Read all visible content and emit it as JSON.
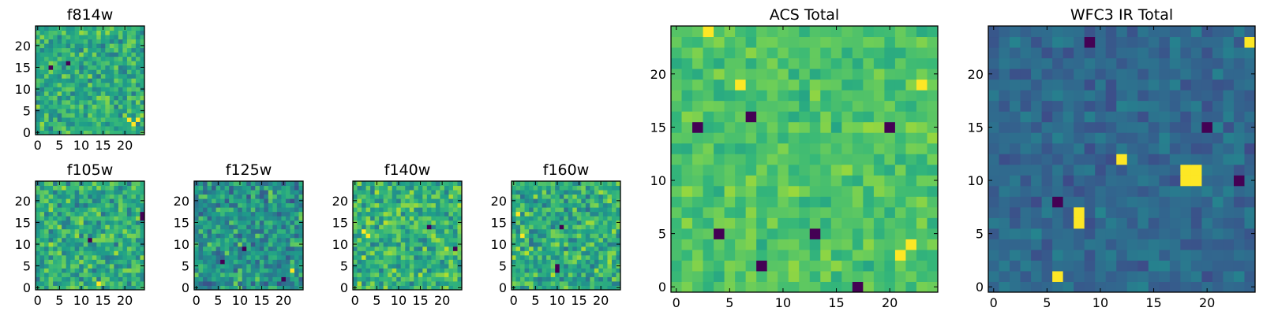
{
  "chart_data": [
    {
      "type": "heatmap",
      "title": "f814w",
      "grid_size": 25,
      "xlim": [
        0,
        25
      ],
      "ylim": [
        0,
        25
      ],
      "xticks": [
        0,
        5,
        10,
        15,
        20
      ],
      "yticks": [
        0,
        5,
        10,
        15,
        20
      ],
      "colormap": "viridis",
      "seed": 814,
      "dark_spots": [
        [
          3,
          15
        ],
        [
          7,
          16
        ]
      ],
      "bright_spots": [
        [
          22,
          2
        ],
        [
          23,
          3
        ],
        [
          21,
          3
        ]
      ]
    },
    {
      "type": "heatmap",
      "title": "f105w",
      "grid_size": 25,
      "xlim": [
        0,
        25
      ],
      "ylim": [
        0,
        25
      ],
      "xticks": [
        0,
        5,
        10,
        15,
        20
      ],
      "yticks": [
        0,
        5,
        10,
        15,
        20
      ],
      "colormap": "viridis",
      "seed": 105,
      "dark_spots": [
        [
          24,
          16
        ],
        [
          24,
          17
        ],
        [
          12,
          11
        ]
      ],
      "bright_spots": [
        [
          14,
          1
        ]
      ]
    },
    {
      "type": "heatmap",
      "title": "f125w",
      "grid_size": 25,
      "xlim": [
        0,
        25
      ],
      "ylim": [
        0,
        25
      ],
      "xticks": [
        0,
        5,
        10,
        15,
        20
      ],
      "yticks": [
        0,
        5,
        10,
        15,
        20
      ],
      "colormap": "viridis",
      "seed": 125,
      "dark_spots": [
        [
          6,
          6
        ],
        [
          11,
          9
        ],
        [
          20,
          2
        ]
      ],
      "bright_spots": [
        [
          22,
          4
        ]
      ]
    },
    {
      "type": "heatmap",
      "title": "f140w",
      "grid_size": 25,
      "xlim": [
        0,
        25
      ],
      "ylim": [
        0,
        25
      ],
      "xticks": [
        0,
        5,
        10,
        15,
        20
      ],
      "yticks": [
        0,
        5,
        10,
        15,
        20
      ],
      "colormap": "viridis",
      "seed": 140,
      "dark_spots": [
        [
          23,
          9
        ],
        [
          17,
          14
        ]
      ],
      "bright_spots": [
        [
          2,
          13
        ],
        [
          3,
          12
        ]
      ]
    },
    {
      "type": "heatmap",
      "title": "f160w",
      "grid_size": 25,
      "xlim": [
        0,
        25
      ],
      "ylim": [
        0,
        25
      ],
      "xticks": [
        0,
        5,
        10,
        15,
        20
      ],
      "yticks": [
        0,
        5,
        10,
        15,
        20
      ],
      "colormap": "viridis",
      "seed": 160,
      "dark_spots": [
        [
          10,
          5
        ],
        [
          10,
          4
        ],
        [
          11,
          14
        ]
      ],
      "bright_spots": [
        [
          1,
          17
        ],
        [
          2,
          12
        ]
      ]
    },
    {
      "type": "heatmap",
      "title": "ACS Total",
      "grid_size": 25,
      "xlim": [
        0,
        25
      ],
      "ylim": [
        0,
        25
      ],
      "xticks": [
        0,
        5,
        10,
        15,
        20
      ],
      "yticks": [
        0,
        5,
        10,
        15,
        20
      ],
      "colormap": "viridis",
      "seed": 7,
      "dark_spots": [
        [
          2,
          15
        ],
        [
          7,
          16
        ],
        [
          4,
          5
        ],
        [
          13,
          5
        ],
        [
          8,
          2
        ],
        [
          20,
          15
        ],
        [
          17,
          0
        ]
      ],
      "bright_spots": [
        [
          6,
          19
        ],
        [
          23,
          19
        ],
        [
          21,
          3
        ],
        [
          22,
          4
        ],
        [
          3,
          24
        ]
      ]
    },
    {
      "type": "heatmap",
      "title": "WFC3 IR Total",
      "grid_size": 25,
      "xlim": [
        0,
        25
      ],
      "ylim": [
        0,
        25
      ],
      "xticks": [
        0,
        5,
        10,
        15,
        20
      ],
      "yticks": [
        0,
        5,
        10,
        15,
        20
      ],
      "colormap": "viridis",
      "seed": 3,
      "dark_spots": [
        [
          9,
          23
        ],
        [
          20,
          15
        ],
        [
          23,
          10
        ],
        [
          6,
          8
        ]
      ],
      "bright_spots": [
        [
          12,
          12
        ],
        [
          18,
          11
        ],
        [
          19,
          11
        ],
        [
          18,
          10
        ],
        [
          19,
          10
        ],
        [
          8,
          7
        ],
        [
          8,
          6
        ],
        [
          6,
          1
        ],
        [
          24,
          23
        ]
      ]
    }
  ]
}
